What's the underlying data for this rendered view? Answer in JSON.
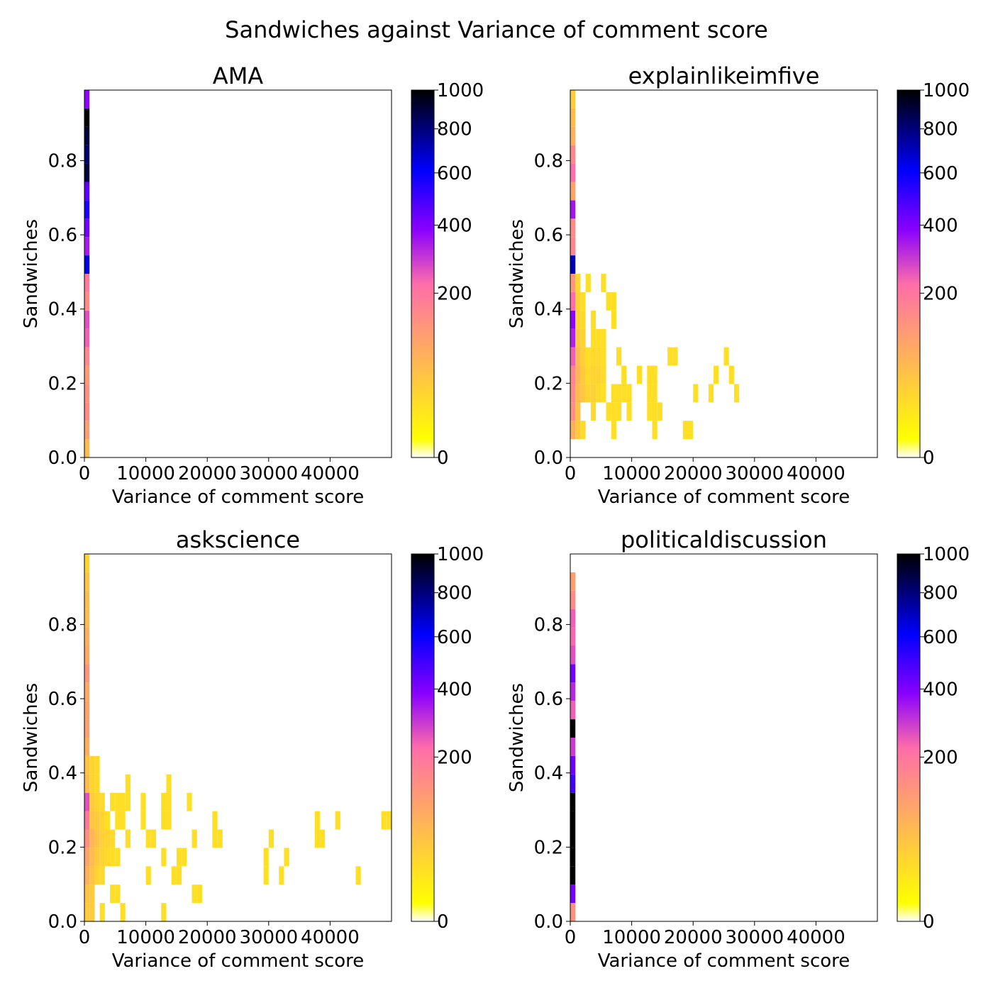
{
  "title": "Sandwiches against Variance of comment score",
  "colors": {
    "colormap": [
      "#ffffff",
      "#ffff00",
      "#ff6ea8",
      "#8a00ff",
      "#0000ff",
      "#000000"
    ]
  },
  "chart_data": [
    {
      "type": "heatmap",
      "title": "AMA",
      "xlabel": "Variance of comment score",
      "ylabel": "Sandwiches",
      "xlim": [
        0,
        50000
      ],
      "ylim": [
        0,
        0.99
      ],
      "xticks": [
        0,
        10000,
        20000,
        30000,
        40000
      ],
      "xtick_labels": [
        "0",
        "10000",
        "20000",
        "30000",
        "40000"
      ],
      "yticks": [
        0.0,
        0.2,
        0.4,
        0.6,
        0.8
      ],
      "ytick_labels": [
        "0.0",
        "0.2",
        "0.4",
        "0.6",
        "0.8"
      ],
      "bin_width": 833,
      "bin_height": 0.0495,
      "colorbar": {
        "range": [
          0,
          1000
        ],
        "scale": "power",
        "ticks": [
          0,
          200,
          400,
          600,
          800,
          1000
        ],
        "tick_labels": [
          "0",
          "200",
          "400",
          "600",
          "800",
          "1000"
        ]
      },
      "cells": [
        [
          0,
          0.0,
          60
        ],
        [
          0,
          0.0495,
          110
        ],
        [
          0,
          0.099,
          150
        ],
        [
          0,
          0.1485,
          140
        ],
        [
          0,
          0.198,
          120
        ],
        [
          0,
          0.2475,
          160
        ],
        [
          0,
          0.297,
          240
        ],
        [
          0,
          0.3465,
          260
        ],
        [
          0,
          0.396,
          150
        ],
        [
          0,
          0.4455,
          190
        ],
        [
          0,
          0.495,
          650
        ],
        [
          0,
          0.5445,
          340
        ],
        [
          0,
          0.594,
          420
        ],
        [
          0,
          0.6435,
          560
        ],
        [
          0,
          0.693,
          450
        ],
        [
          0,
          0.7425,
          900
        ],
        [
          0,
          0.792,
          820
        ],
        [
          0,
          0.8415,
          900
        ],
        [
          0,
          0.891,
          1000
        ],
        [
          0,
          0.9405,
          380
        ]
      ]
    },
    {
      "type": "heatmap",
      "title": "explainlikeimfive",
      "xlabel": "Variance of comment score",
      "ylabel": "Sandwiches",
      "xlim": [
        0,
        50000
      ],
      "ylim": [
        0,
        0.99
      ],
      "xticks": [
        0,
        10000,
        20000,
        30000,
        40000
      ],
      "xtick_labels": [
        "0",
        "10000",
        "20000",
        "30000",
        "40000"
      ],
      "yticks": [
        0.0,
        0.2,
        0.4,
        0.6,
        0.8
      ],
      "ytick_labels": [
        "0.0",
        "0.2",
        "0.4",
        "0.6",
        "0.8"
      ],
      "bin_width": 833,
      "bin_height": 0.0495,
      "colorbar": {
        "range": [
          0,
          1000
        ],
        "scale": "power",
        "ticks": [
          0,
          200,
          400,
          600,
          800,
          1000
        ],
        "tick_labels": [
          "0",
          "200",
          "400",
          "600",
          "800",
          "1000"
        ]
      },
      "cells": [
        [
          0,
          0.0495,
          80
        ],
        [
          0,
          0.099,
          140
        ],
        [
          0,
          0.1485,
          150
        ],
        [
          0,
          0.198,
          160
        ],
        [
          0,
          0.2475,
          240
        ],
        [
          0,
          0.297,
          330
        ],
        [
          0,
          0.3465,
          380
        ],
        [
          0,
          0.396,
          220
        ],
        [
          0,
          0.4455,
          120
        ],
        [
          0,
          0.495,
          700
        ],
        [
          0,
          0.5445,
          160
        ],
        [
          0,
          0.594,
          150
        ],
        [
          0,
          0.6435,
          350
        ],
        [
          0,
          0.693,
          100
        ],
        [
          0,
          0.7425,
          220
        ],
        [
          0,
          0.792,
          160
        ],
        [
          0,
          0.8415,
          80
        ],
        [
          0,
          0.891,
          60
        ],
        [
          0,
          0.9405,
          40
        ],
        [
          833,
          0.0495,
          40
        ],
        [
          833,
          0.099,
          50
        ],
        [
          833,
          0.1485,
          60
        ],
        [
          833,
          0.198,
          70
        ],
        [
          833,
          0.2475,
          60
        ],
        [
          833,
          0.297,
          40
        ],
        [
          833,
          0.3465,
          30
        ],
        [
          833,
          0.396,
          30
        ],
        [
          833,
          0.4455,
          25
        ],
        [
          1666,
          0.0495,
          25
        ],
        [
          1666,
          0.1485,
          45
        ],
        [
          1666,
          0.198,
          40
        ],
        [
          1666,
          0.2475,
          35
        ],
        [
          1666,
          0.297,
          30
        ],
        [
          1666,
          0.3465,
          25
        ],
        [
          1666,
          0.396,
          20
        ],
        [
          2500,
          0.1485,
          30
        ],
        [
          2500,
          0.198,
          25
        ],
        [
          2500,
          0.2475,
          20
        ],
        [
          2500,
          0.4455,
          20
        ],
        [
          3333,
          0.099,
          25
        ],
        [
          3333,
          0.1485,
          35
        ],
        [
          3333,
          0.198,
          30
        ],
        [
          3333,
          0.2475,
          25
        ],
        [
          3333,
          0.297,
          20
        ],
        [
          3333,
          0.3465,
          20
        ],
        [
          4166,
          0.1485,
          25
        ],
        [
          4166,
          0.198,
          30
        ],
        [
          4166,
          0.2475,
          25
        ],
        [
          4166,
          0.297,
          20
        ],
        [
          5000,
          0.1485,
          20
        ],
        [
          5000,
          0.198,
          25
        ],
        [
          5000,
          0.2475,
          20
        ],
        [
          5000,
          0.297,
          20
        ],
        [
          5000,
          0.4455,
          20
        ],
        [
          5833,
          0.099,
          20
        ],
        [
          5833,
          0.396,
          20
        ],
        [
          6666,
          0.0495,
          20
        ],
        [
          6666,
          0.099,
          20
        ],
        [
          6666,
          0.1485,
          20
        ],
        [
          6666,
          0.3465,
          20
        ],
        [
          6666,
          0.396,
          20
        ],
        [
          7500,
          0.099,
          20
        ],
        [
          7500,
          0.1485,
          20
        ],
        [
          7500,
          0.2475,
          20
        ],
        [
          8333,
          0.1485,
          20
        ],
        [
          8333,
          0.198,
          20
        ],
        [
          9166,
          0.099,
          20
        ],
        [
          9166,
          0.1485,
          20
        ],
        [
          10833,
          0.198,
          20
        ],
        [
          12500,
          0.099,
          20
        ],
        [
          12500,
          0.1485,
          20
        ],
        [
          12500,
          0.198,
          20
        ],
        [
          13333,
          0.0495,
          20
        ],
        [
          13333,
          0.099,
          20
        ],
        [
          13333,
          0.1485,
          20
        ],
        [
          13333,
          0.198,
          20
        ],
        [
          14166,
          0.099,
          20
        ],
        [
          15833,
          0.2475,
          20
        ],
        [
          16666,
          0.2475,
          20
        ],
        [
          18333,
          0.0495,
          20
        ],
        [
          19166,
          0.0495,
          20
        ],
        [
          20000,
          0.1485,
          20
        ],
        [
          22500,
          0.1485,
          20
        ],
        [
          23333,
          0.198,
          20
        ],
        [
          25000,
          0.2475,
          20
        ],
        [
          25833,
          0.198,
          20
        ],
        [
          26666,
          0.1485,
          20
        ]
      ]
    },
    {
      "type": "heatmap",
      "title": "askscience",
      "xlabel": "Variance of comment score",
      "ylabel": "Sandwiches",
      "xlim": [
        0,
        50000
      ],
      "ylim": [
        0,
        0.99
      ],
      "xticks": [
        0,
        10000,
        20000,
        30000,
        40000
      ],
      "xtick_labels": [
        "0",
        "10000",
        "20000",
        "30000",
        "40000"
      ],
      "yticks": [
        0.0,
        0.2,
        0.4,
        0.6,
        0.8
      ],
      "ytick_labels": [
        "0.0",
        "0.2",
        "0.4",
        "0.6",
        "0.8"
      ],
      "bin_width": 833,
      "bin_height": 0.0495,
      "colorbar": {
        "range": [
          0,
          1000
        ],
        "scale": "power",
        "ticks": [
          0,
          200,
          400,
          600,
          800,
          1000
        ],
        "tick_labels": [
          "0",
          "200",
          "400",
          "600",
          "800",
          "1000"
        ]
      },
      "cells": [
        [
          0,
          0.0,
          40
        ],
        [
          0,
          0.0495,
          50
        ],
        [
          0,
          0.099,
          80
        ],
        [
          0,
          0.1485,
          100
        ],
        [
          0,
          0.198,
          140
        ],
        [
          0,
          0.2475,
          200
        ],
        [
          0,
          0.297,
          260
        ],
        [
          0,
          0.3465,
          60
        ],
        [
          0,
          0.396,
          50
        ],
        [
          0,
          0.4455,
          80
        ],
        [
          0,
          0.495,
          110
        ],
        [
          0,
          0.5445,
          100
        ],
        [
          0,
          0.594,
          90
        ],
        [
          0,
          0.6435,
          130
        ],
        [
          0,
          0.693,
          90
        ],
        [
          0,
          0.7425,
          80
        ],
        [
          0,
          0.792,
          60
        ],
        [
          0,
          0.8415,
          60
        ],
        [
          0,
          0.891,
          50
        ],
        [
          0,
          0.9405,
          30
        ],
        [
          833,
          0.0,
          40
        ],
        [
          833,
          0.0495,
          40
        ],
        [
          833,
          0.099,
          50
        ],
        [
          833,
          0.1485,
          60
        ],
        [
          833,
          0.198,
          70
        ],
        [
          833,
          0.2475,
          50
        ],
        [
          833,
          0.297,
          40
        ],
        [
          833,
          0.3465,
          30
        ],
        [
          833,
          0.396,
          30
        ],
        [
          1666,
          0.099,
          30
        ],
        [
          1666,
          0.1485,
          40
        ],
        [
          1666,
          0.198,
          50
        ],
        [
          1666,
          0.2475,
          40
        ],
        [
          1666,
          0.297,
          30
        ],
        [
          1666,
          0.3465,
          25
        ],
        [
          1666,
          0.396,
          25
        ],
        [
          2500,
          0.099,
          25
        ],
        [
          2500,
          0.1485,
          30
        ],
        [
          2500,
          0.198,
          35
        ],
        [
          2500,
          0.2475,
          30
        ],
        [
          2500,
          0.297,
          25
        ],
        [
          2500,
          0.0,
          20
        ],
        [
          3333,
          0.1485,
          25
        ],
        [
          3333,
          0.198,
          30
        ],
        [
          3333,
          0.2475,
          20
        ],
        [
          4166,
          0.0495,
          20
        ],
        [
          4166,
          0.1485,
          20
        ],
        [
          4166,
          0.198,
          25
        ],
        [
          4166,
          0.297,
          20
        ],
        [
          5000,
          0.0495,
          20
        ],
        [
          5000,
          0.1485,
          20
        ],
        [
          5000,
          0.2475,
          20
        ],
        [
          5000,
          0.297,
          20
        ],
        [
          5833,
          0.0,
          20
        ],
        [
          5833,
          0.2475,
          20
        ],
        [
          5833,
          0.297,
          20
        ],
        [
          6666,
          0.198,
          20
        ],
        [
          6666,
          0.297,
          20
        ],
        [
          6666,
          0.3465,
          20
        ],
        [
          9166,
          0.2475,
          20
        ],
        [
          9166,
          0.297,
          20
        ],
        [
          10000,
          0.099,
          20
        ],
        [
          10000,
          0.198,
          20
        ],
        [
          10833,
          0.198,
          20
        ],
        [
          12500,
          0.0,
          20
        ],
        [
          12500,
          0.1485,
          20
        ],
        [
          12500,
          0.2475,
          20
        ],
        [
          12500,
          0.297,
          20
        ],
        [
          13333,
          0.2475,
          20
        ],
        [
          13333,
          0.297,
          20
        ],
        [
          13333,
          0.3465,
          20
        ],
        [
          14166,
          0.099,
          20
        ],
        [
          15000,
          0.099,
          20
        ],
        [
          15000,
          0.1485,
          20
        ],
        [
          15833,
          0.1485,
          20
        ],
        [
          16666,
          0.297,
          20
        ],
        [
          17500,
          0.0495,
          20
        ],
        [
          17500,
          0.198,
          20
        ],
        [
          18333,
          0.0495,
          20
        ],
        [
          20833,
          0.198,
          20
        ],
        [
          20833,
          0.2475,
          20
        ],
        [
          21666,
          0.198,
          20
        ],
        [
          29166,
          0.099,
          20
        ],
        [
          29166,
          0.1485,
          20
        ],
        [
          30000,
          0.198,
          20
        ],
        [
          31666,
          0.099,
          20
        ],
        [
          32500,
          0.1485,
          20
        ],
        [
          37500,
          0.198,
          20
        ],
        [
          37500,
          0.2475,
          20
        ],
        [
          38333,
          0.198,
          20
        ],
        [
          40833,
          0.2475,
          20
        ],
        [
          44166,
          0.099,
          20
        ],
        [
          48333,
          0.2475,
          20
        ],
        [
          49166,
          0.2475,
          20
        ]
      ]
    },
    {
      "type": "heatmap",
      "title": "politicaldiscussion",
      "xlabel": "Variance of comment score",
      "ylabel": "Sandwiches",
      "xlim": [
        0,
        50000
      ],
      "ylim": [
        0,
        0.99
      ],
      "xticks": [
        0,
        10000,
        20000,
        30000,
        40000
      ],
      "xtick_labels": [
        "0",
        "10000",
        "20000",
        "30000",
        "40000"
      ],
      "yticks": [
        0.0,
        0.2,
        0.4,
        0.6,
        0.8
      ],
      "ytick_labels": [
        "0.0",
        "0.2",
        "0.4",
        "0.6",
        "0.8"
      ],
      "bin_width": 833,
      "bin_height": 0.0495,
      "colorbar": {
        "range": [
          0,
          1000
        ],
        "scale": "power",
        "ticks": [
          0,
          200,
          400,
          600,
          800,
          1000
        ],
        "tick_labels": [
          "0",
          "200",
          "400",
          "600",
          "800",
          "1000"
        ]
      },
      "cells": [
        [
          0,
          0.0,
          140
        ],
        [
          0,
          0.0495,
          420
        ],
        [
          0,
          0.099,
          1000
        ],
        [
          0,
          0.1485,
          1000
        ],
        [
          0,
          0.198,
          1000
        ],
        [
          0,
          0.2475,
          1000
        ],
        [
          0,
          0.297,
          1000
        ],
        [
          0,
          0.3465,
          500
        ],
        [
          0,
          0.396,
          430
        ],
        [
          0,
          0.4455,
          290
        ],
        [
          0,
          0.495,
          1000
        ],
        [
          0,
          0.5445,
          240
        ],
        [
          0,
          0.594,
          320
        ],
        [
          0,
          0.6435,
          420
        ],
        [
          0,
          0.693,
          260
        ],
        [
          0,
          0.7425,
          230
        ],
        [
          0,
          0.792,
          240
        ],
        [
          0,
          0.8415,
          150
        ],
        [
          0,
          0.891,
          110
        ]
      ]
    }
  ]
}
